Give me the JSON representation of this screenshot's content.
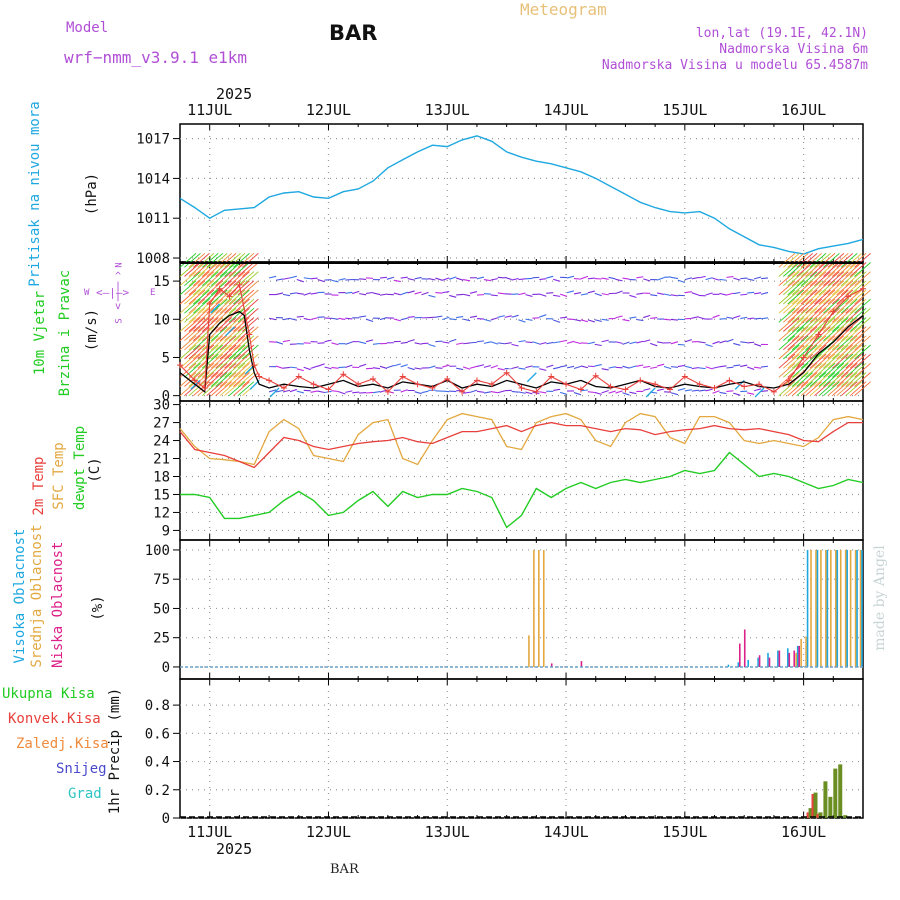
{
  "header": {
    "model_label": "Model",
    "model_name": "wrf−nmm_v3.9.1  e1km",
    "station": "BAR",
    "meteogram_title": "Meteogram",
    "lonlat": "lon,lat (19.1E, 42.1N)",
    "altitude": "Nadmorska Visina 6m",
    "model_altitude": "Nadmorska Visina u modelu 65.4587m",
    "year": "2025",
    "footer_station": "BAR",
    "watermark": "made by Angel"
  },
  "colors": {
    "pressure": "#1fa8e0",
    "temp2m": "#e8403c",
    "sfc_temp": "#e3a840",
    "dewpoint": "#22cc22",
    "wind_speed": "#000000",
    "wind_gust": "#e8403c",
    "high_cloud": "#1fa8e0",
    "mid_cloud": "#e3a840",
    "low_cloud": "#dd1f8a",
    "precip": "#6b8e23",
    "title_magenta": "#b04fd6",
    "title_orange": "#e8c078"
  },
  "x_axis": {
    "days": [
      "11JUL",
      "12JUL",
      "13JUL",
      "14JUL",
      "15JUL",
      "16JUL"
    ],
    "start_hour": -6,
    "end_hour": 132
  },
  "panel_labels": {
    "pressure": {
      "title": "Pritisak na nivou mora",
      "unit": "(hPa)"
    },
    "wind": {
      "title1": "10m Vjetar",
      "title2": "Brzina i Pravac",
      "unit": "(m/s)",
      "compass": [
        "N",
        "E",
        "S",
        "W"
      ]
    },
    "temp": {
      "t1": "2m Temp",
      "t2": "SFC Temp",
      "t3": "dewpt Temp",
      "unit": "(C)"
    },
    "cloud": {
      "c1": "Visoka Oblacnost",
      "c2": "Srednja Oblacnost",
      "c3": "Niska Oblacnost",
      "unit": "(%)"
    },
    "precip": {
      "legend": [
        "Ukupna Kisa",
        "Konvek.Kisa",
        "Zaledj.Kisa",
        "Snijeg",
        "Grad"
      ],
      "unit": "1hr Precip (mm)"
    }
  },
  "chart_data": [
    {
      "type": "line",
      "title": "Pritisak na nivou mora",
      "ylabel": "(hPa)",
      "ylim": [
        1008,
        1018
      ],
      "yticks": [
        1008,
        1011,
        1014,
        1017
      ],
      "series": [
        {
          "name": "Pritisak na nivou mora",
          "x": [
            -6,
            -3,
            0,
            3,
            6,
            9,
            12,
            15,
            18,
            21,
            24,
            27,
            30,
            33,
            36,
            39,
            42,
            45,
            48,
            51,
            54,
            57,
            60,
            63,
            66,
            69,
            72,
            75,
            78,
            81,
            84,
            87,
            90,
            93,
            96,
            99,
            102,
            105,
            108,
            111,
            114,
            117,
            120,
            123,
            126,
            129,
            132
          ],
          "values": [
            1012.5,
            1011.8,
            1011.0,
            1011.6,
            1011.7,
            1011.8,
            1012.6,
            1012.9,
            1013.0,
            1012.6,
            1012.5,
            1013.0,
            1013.2,
            1013.8,
            1014.8,
            1015.4,
            1016.0,
            1016.5,
            1016.4,
            1016.9,
            1017.2,
            1016.8,
            1016.0,
            1015.6,
            1015.3,
            1015.1,
            1014.8,
            1014.5,
            1014.0,
            1013.4,
            1012.8,
            1012.2,
            1011.8,
            1011.5,
            1011.4,
            1011.5,
            1011.0,
            1010.2,
            1009.6,
            1009.0,
            1008.8,
            1008.5,
            1008.3,
            1008.7,
            1008.9,
            1009.1,
            1009.4
          ]
        }
      ]
    },
    {
      "type": "line",
      "title": "10m Vjetar Brzina i Pravac",
      "ylabel": "(m/s)",
      "ylim": [
        -0.5,
        18
      ],
      "yticks": [
        0,
        5,
        10,
        15
      ],
      "series": [
        {
          "name": "speed",
          "x": [
            -6,
            -3,
            -1,
            0,
            2,
            4,
            6,
            7,
            8,
            9,
            10,
            12,
            15,
            18,
            21,
            24,
            27,
            30,
            33,
            36,
            39,
            42,
            45,
            48,
            51,
            54,
            57,
            60,
            63,
            66,
            69,
            72,
            75,
            78,
            81,
            84,
            87,
            90,
            93,
            96,
            99,
            102,
            105,
            108,
            111,
            114,
            117,
            120,
            123,
            126,
            129,
            132
          ],
          "values": [
            3.0,
            1.5,
            0.5,
            8.0,
            9.5,
            10.5,
            11.0,
            10.5,
            6.0,
            3.0,
            1.5,
            1.0,
            1.5,
            1.2,
            1.0,
            1.5,
            2.0,
            1.2,
            1.5,
            1.0,
            1.8,
            1.5,
            1.2,
            2.0,
            1.0,
            1.5,
            1.2,
            2.0,
            1.5,
            1.0,
            1.8,
            1.5,
            2.0,
            1.2,
            1.0,
            1.5,
            2.0,
            1.2,
            1.0,
            1.5,
            1.2,
            1.0,
            1.5,
            1.8,
            1.2,
            1.0,
            1.5,
            3.0,
            5.5,
            7.0,
            9.0,
            10.5
          ]
        },
        {
          "name": "gust",
          "x": [
            -6,
            -3,
            -1,
            0,
            2,
            4,
            6,
            8,
            9,
            10,
            12,
            15,
            18,
            21,
            24,
            27,
            30,
            33,
            36,
            39,
            42,
            45,
            48,
            51,
            54,
            57,
            60,
            63,
            66,
            69,
            72,
            75,
            78,
            81,
            84,
            87,
            90,
            93,
            96,
            99,
            102,
            105,
            108,
            111,
            114,
            117,
            120,
            123,
            126,
            129,
            132
          ],
          "values": [
            4.0,
            2.0,
            1.0,
            12.0,
            14.0,
            13.0,
            14.5,
            8.0,
            4.0,
            2.5,
            2.0,
            1.0,
            2.5,
            1.5,
            0.8,
            2.8,
            1.5,
            2.2,
            0.5,
            2.5,
            1.5,
            1.0,
            2.2,
            0.5,
            2.0,
            1.5,
            3.0,
            1.0,
            0.5,
            2.5,
            1.5,
            0.8,
            2.6,
            1.2,
            0.8,
            2.0,
            1.5,
            0.8,
            2.5,
            1.5,
            1.0,
            2.0,
            1.2,
            1.5,
            0.5,
            2.0,
            5.0,
            8.0,
            11.0,
            13.0,
            14.0
          ]
        }
      ]
    },
    {
      "type": "line",
      "title": "2m Temp / SFC Temp / dewpt Temp",
      "ylabel": "(C)",
      "ylim": [
        7.5,
        30
      ],
      "yticks": [
        9,
        12,
        15,
        18,
        21,
        24,
        27,
        30
      ],
      "series": [
        {
          "name": "2m Temp",
          "x": [
            -6,
            -3,
            0,
            3,
            6,
            9,
            12,
            15,
            18,
            21,
            24,
            27,
            30,
            33,
            36,
            39,
            42,
            45,
            48,
            51,
            54,
            57,
            60,
            63,
            66,
            69,
            72,
            75,
            78,
            81,
            84,
            87,
            90,
            93,
            96,
            99,
            102,
            105,
            108,
            111,
            114,
            117,
            120,
            123,
            126,
            129,
            132
          ],
          "values": [
            25.5,
            22.5,
            22.0,
            21.5,
            20.5,
            19.5,
            22.0,
            24.5,
            24.0,
            23.0,
            22.5,
            23.0,
            23.5,
            23.8,
            24.0,
            24.5,
            23.8,
            23.5,
            24.5,
            25.5,
            25.5,
            26.0,
            26.5,
            25.5,
            26.5,
            27.0,
            26.5,
            26.5,
            26.0,
            25.5,
            26.0,
            25.8,
            25.0,
            25.5,
            25.8,
            26.0,
            26.5,
            26.0,
            25.8,
            26.0,
            25.5,
            25.0,
            24.0,
            23.8,
            25.5,
            27.0,
            27.0
          ]
        },
        {
          "name": "SFC Temp",
          "x": [
            -6,
            -3,
            0,
            3,
            6,
            9,
            12,
            15,
            18,
            21,
            24,
            27,
            30,
            33,
            36,
            39,
            42,
            45,
            48,
            51,
            54,
            57,
            60,
            63,
            66,
            69,
            72,
            75,
            78,
            81,
            84,
            87,
            90,
            93,
            96,
            99,
            102,
            105,
            108,
            111,
            114,
            117,
            120,
            123,
            126,
            129,
            132
          ],
          "values": [
            26.0,
            23.0,
            21.0,
            20.8,
            20.5,
            20.0,
            25.5,
            27.5,
            26.0,
            21.5,
            21.0,
            20.5,
            25.0,
            27.0,
            27.5,
            21.0,
            20.0,
            24.0,
            27.5,
            28.5,
            28.0,
            27.5,
            23.0,
            22.5,
            27.0,
            28.0,
            28.5,
            27.5,
            24.0,
            23.0,
            27.0,
            28.5,
            28.0,
            24.5,
            23.5,
            28.0,
            28.0,
            27.0,
            24.0,
            23.5,
            24.0,
            23.5,
            23.0,
            24.5,
            27.5,
            28.0,
            27.5
          ]
        },
        {
          "name": "dewpt Temp",
          "x": [
            -6,
            -3,
            0,
            3,
            6,
            9,
            12,
            15,
            18,
            21,
            24,
            27,
            30,
            33,
            36,
            39,
            42,
            45,
            48,
            51,
            54,
            57,
            60,
            63,
            66,
            69,
            72,
            75,
            78,
            81,
            84,
            87,
            90,
            93,
            96,
            99,
            102,
            105,
            108,
            111,
            114,
            117,
            120,
            123,
            126,
            129,
            132
          ],
          "values": [
            15.0,
            15.0,
            14.5,
            11.0,
            11.0,
            11.5,
            12.0,
            14.0,
            15.5,
            14.0,
            11.5,
            12.0,
            14.0,
            15.5,
            13.0,
            15.5,
            14.5,
            15.0,
            15.0,
            16.0,
            15.5,
            14.5,
            9.5,
            11.5,
            16.0,
            14.5,
            16.0,
            17.0,
            16.0,
            17.0,
            17.5,
            17.0,
            17.5,
            18.0,
            19.0,
            18.5,
            19.0,
            22.0,
            20.0,
            18.0,
            18.5,
            18.0,
            17.0,
            16.0,
            16.5,
            17.5,
            17.0
          ]
        }
      ]
    },
    {
      "type": "bar",
      "title": "Visoka / Srednja / Niska Oblacnost",
      "ylabel": "(%)",
      "ylim": [
        0,
        100
      ],
      "yticks": [
        0,
        25,
        50,
        75,
        100
      ],
      "series": [
        {
          "name": "Srednja Oblacnost",
          "x": [
            62.5,
            63.5,
            64.5,
            65.5,
            66.5,
            67.5,
            108.5,
            109.5,
            110.5,
            111.5,
            112.5,
            113.5,
            114.5,
            115.5,
            116.5,
            117.5,
            118.5,
            119.5,
            120.5,
            121.5,
            122.5,
            123.5,
            124.5,
            125.5,
            126.5,
            127.5,
            128.5,
            129.5,
            130.5,
            131.5
          ],
          "values": [
            0,
            0,
            27,
            100,
            100,
            100,
            0,
            0,
            0,
            0,
            0,
            0,
            0,
            0,
            0,
            0,
            12,
            24,
            26,
            100,
            100,
            100,
            100,
            100,
            100,
            100,
            100,
            100,
            100,
            100
          ]
        },
        {
          "name": "Visoka Oblacnost",
          "x": [
            104.5,
            106.5,
            108.5,
            110.5,
            112.5,
            114.5,
            116.5,
            118.5,
            120.5,
            122.5,
            124.5,
            126.5,
            128.5,
            130.5,
            131.5
          ],
          "values": [
            2,
            4,
            6,
            8,
            12,
            14,
            16,
            18,
            100,
            100,
            100,
            100,
            100,
            100,
            100
          ]
        },
        {
          "name": "Niska Oblacnost",
          "x": [
            68.5,
            74.5,
            106.5,
            107.5,
            110.5,
            112.5,
            114.5,
            116.5,
            117.5,
            118.5
          ],
          "values": [
            3,
            5,
            20,
            32,
            10,
            8,
            14,
            12,
            14,
            18
          ]
        }
      ]
    },
    {
      "type": "bar",
      "title": "1hr Precip",
      "ylabel": "1hr Precip (mm)",
      "ylim": [
        0,
        1.0
      ],
      "yticks": [
        0,
        0.2,
        0.4,
        0.6,
        0.8
      ],
      "series": [
        {
          "name": "Ukupna Kisa",
          "x": [
            120,
            121,
            122,
            123,
            124,
            125,
            126,
            127,
            128
          ],
          "values": [
            0.01,
            0.07,
            0.18,
            0.04,
            0.26,
            0.15,
            0.35,
            0.38,
            0.02
          ]
        },
        {
          "name": "Konvek.Kisa",
          "x": [
            121,
            122,
            123
          ],
          "values": [
            0.04,
            0.17,
            0.03
          ]
        }
      ]
    }
  ]
}
